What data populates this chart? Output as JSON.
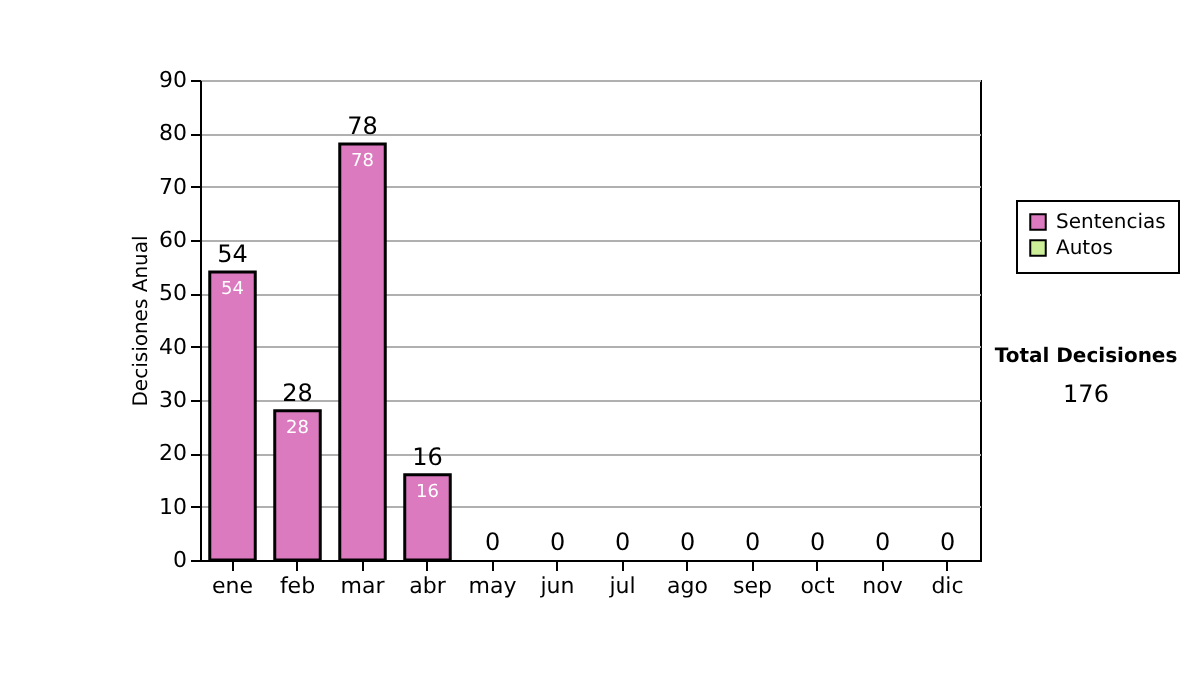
{
  "chart_data": {
    "type": "bar",
    "stacked": true,
    "ylabel": "Decisiones Anual",
    "categories": [
      "ene",
      "feb",
      "mar",
      "abr",
      "may",
      "jun",
      "jul",
      "ago",
      "sep",
      "oct",
      "nov",
      "dic"
    ],
    "series": [
      {
        "name": "Sentencias",
        "color": "#db7abf",
        "values": [
          54,
          28,
          78,
          16,
          0,
          0,
          0,
          0,
          0,
          0,
          0,
          0
        ],
        "value_labels": [
          "54",
          "28",
          "78",
          "16",
          null,
          null,
          null,
          null,
          null,
          null,
          null,
          null
        ]
      },
      {
        "name": "Autos",
        "color": "#ccee99",
        "values": [
          0,
          0,
          0,
          0,
          0,
          0,
          0,
          0,
          0,
          0,
          0,
          0
        ]
      }
    ],
    "totals": [
      "54",
      "28",
      "78",
      "16",
      "0",
      "0",
      "0",
      "0",
      "0",
      "0",
      "0",
      "0"
    ],
    "ylim": [
      0,
      90
    ],
    "yticks": [
      0,
      10,
      20,
      30,
      40,
      50,
      60,
      70,
      80,
      90
    ],
    "grid": "y",
    "legend": "right",
    "annotations": [
      "Total Decisiones",
      "176"
    ]
  }
}
